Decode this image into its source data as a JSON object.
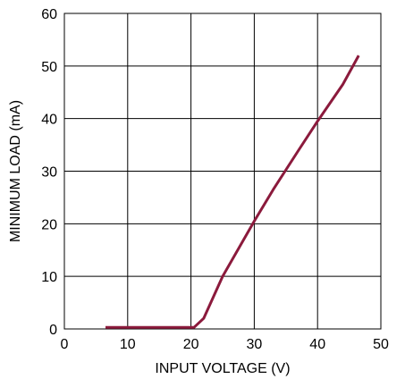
{
  "chart_data": {
    "type": "line",
    "title": "",
    "xlabel": "INPUT VOLTAGE (V)",
    "ylabel": "MINIMUM LOAD (mA)",
    "xlim": [
      0,
      50
    ],
    "ylim": [
      0,
      60
    ],
    "xticks": [
      "0",
      "10",
      "20",
      "30",
      "40",
      "50"
    ],
    "yticks": [
      "0",
      "10",
      "20",
      "30",
      "40",
      "50",
      "60"
    ],
    "grid": true,
    "legend": "none",
    "series": [
      {
        "color": "#8b1a3c",
        "x": [
          6.5,
          10,
          15,
          20.5,
          22,
          25,
          30,
          33,
          37,
          40,
          44,
          46.5
        ],
        "y": [
          0.3,
          0.3,
          0.3,
          0.3,
          2,
          10,
          20.5,
          26.5,
          34,
          39.5,
          46.5,
          52
        ]
      }
    ]
  }
}
